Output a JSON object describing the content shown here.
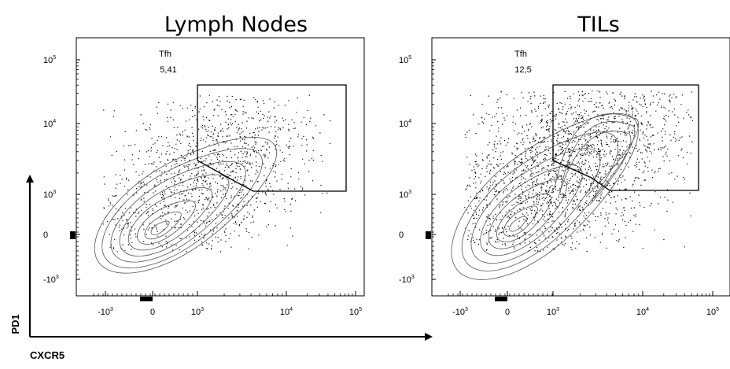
{
  "chart_data": [
    {
      "type": "scatter",
      "title": "Lymph Nodes",
      "gate": {
        "label": "Tfh",
        "value": "5,41"
      },
      "x_ticks": [
        {
          "base": "-10",
          "exp": "3"
        },
        {
          "base": "0",
          "exp": ""
        },
        {
          "base": "10",
          "exp": "3"
        },
        {
          "base": "10",
          "exp": "4"
        },
        {
          "base": "10",
          "exp": "5"
        }
      ],
      "y_ticks": [
        {
          "base": "10",
          "exp": "5"
        },
        {
          "base": "10",
          "exp": "4"
        },
        {
          "base": "10",
          "exp": "3"
        },
        {
          "base": "0",
          "exp": ""
        },
        {
          "base": "-10",
          "exp": "3"
        }
      ]
    },
    {
      "type": "scatter",
      "title": "TILs",
      "gate": {
        "label": "Tfh",
        "value": "12,5"
      },
      "x_ticks": [
        {
          "base": "-10",
          "exp": "3"
        },
        {
          "base": "0",
          "exp": ""
        },
        {
          "base": "10",
          "exp": "3"
        },
        {
          "base": "10",
          "exp": "4"
        },
        {
          "base": "10",
          "exp": "5"
        }
      ],
      "y_ticks": [
        {
          "base": "10",
          "exp": "5"
        },
        {
          "base": "10",
          "exp": "4"
        },
        {
          "base": "10",
          "exp": "3"
        },
        {
          "base": "0",
          "exp": ""
        },
        {
          "base": "-10",
          "exp": "3"
        }
      ]
    }
  ],
  "axes": {
    "x_label": "CXCR5",
    "y_label": "PD1"
  }
}
